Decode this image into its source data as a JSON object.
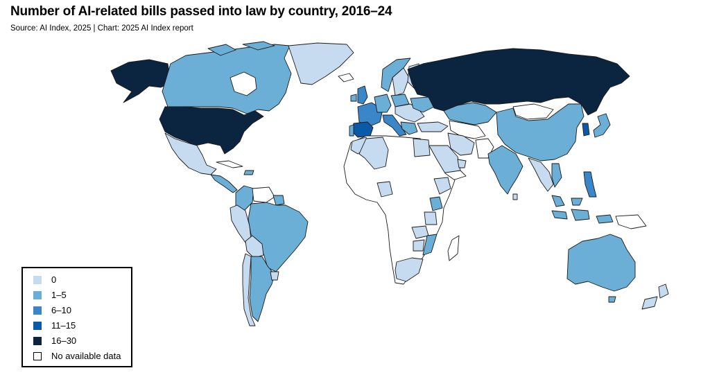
{
  "title": "Number of AI-related bills passed into law by country, 2016–24",
  "source": "Source: AI Index, 2025 | Chart: 2025 AI Index report",
  "colors": {
    "bin_0": "#c6dbef",
    "bin_1_5": "#6baed6",
    "bin_6_10": "#3a86c8",
    "bin_11_15": "#0b5aa8",
    "bin_16_30": "#0b2440",
    "no_data": "#ffffff",
    "border": "#1a1a1a"
  },
  "legend": {
    "items": [
      {
        "label": "0",
        "color": "#c6dbef"
      },
      {
        "label": "1–5",
        "color": "#6baed6"
      },
      {
        "label": "6–10",
        "color": "#3a86c8"
      },
      {
        "label": "11–15",
        "color": "#0b5aa8"
      },
      {
        "label": "16–30",
        "color": "#0b2440"
      },
      {
        "label": "No available data",
        "color": "#ffffff"
      }
    ]
  }
}
